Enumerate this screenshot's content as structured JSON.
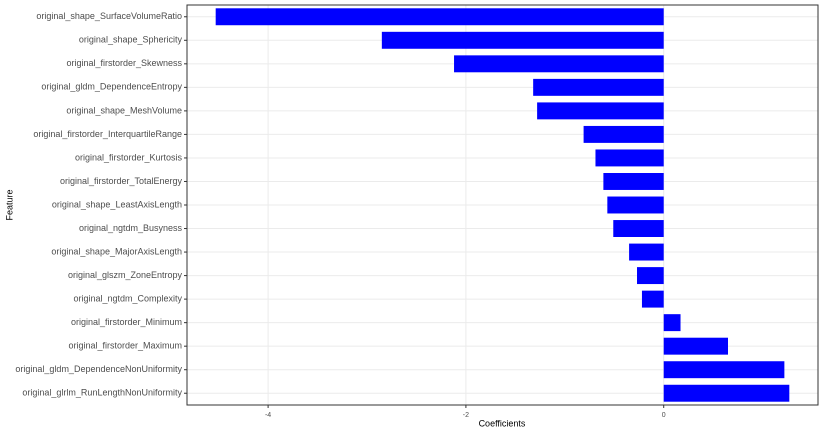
{
  "chart_data": {
    "type": "barh",
    "categories": [
      "original_shape_SurfaceVolumeRatio",
      "original_shape_Sphericity",
      "original_firstorder_Skewness",
      "original_gldm_DependenceEntropy",
      "original_shape_MeshVolume",
      "original_firstorder_InterquartileRange",
      "original_firstorder_Kurtosis",
      "original_firstorder_TotalEnergy",
      "original_shape_LeastAxisLength",
      "original_ngtdm_Busyness",
      "original_shape_MajorAxisLength",
      "original_glszm_ZoneEntropy",
      "original_ngtdm_Complexity",
      "original_firstorder_Minimum",
      "original_firstorder_Maximum",
      "original_gldm_DependenceNonUniformity",
      "original_glrlm_RunLengthNonUniformity"
    ],
    "values": [
      -4.53,
      -2.85,
      -2.12,
      -1.32,
      -1.28,
      -0.81,
      -0.69,
      -0.61,
      -0.57,
      -0.51,
      -0.35,
      -0.27,
      -0.22,
      0.17,
      0.65,
      1.22,
      1.27
    ],
    "color": "#0000ff",
    "xlim": [
      -4.82,
      1.56
    ],
    "xticks": [
      -4,
      -2,
      0
    ],
    "xlabel": "Coefficients",
    "ylabel": "Feature",
    "grid": true
  }
}
